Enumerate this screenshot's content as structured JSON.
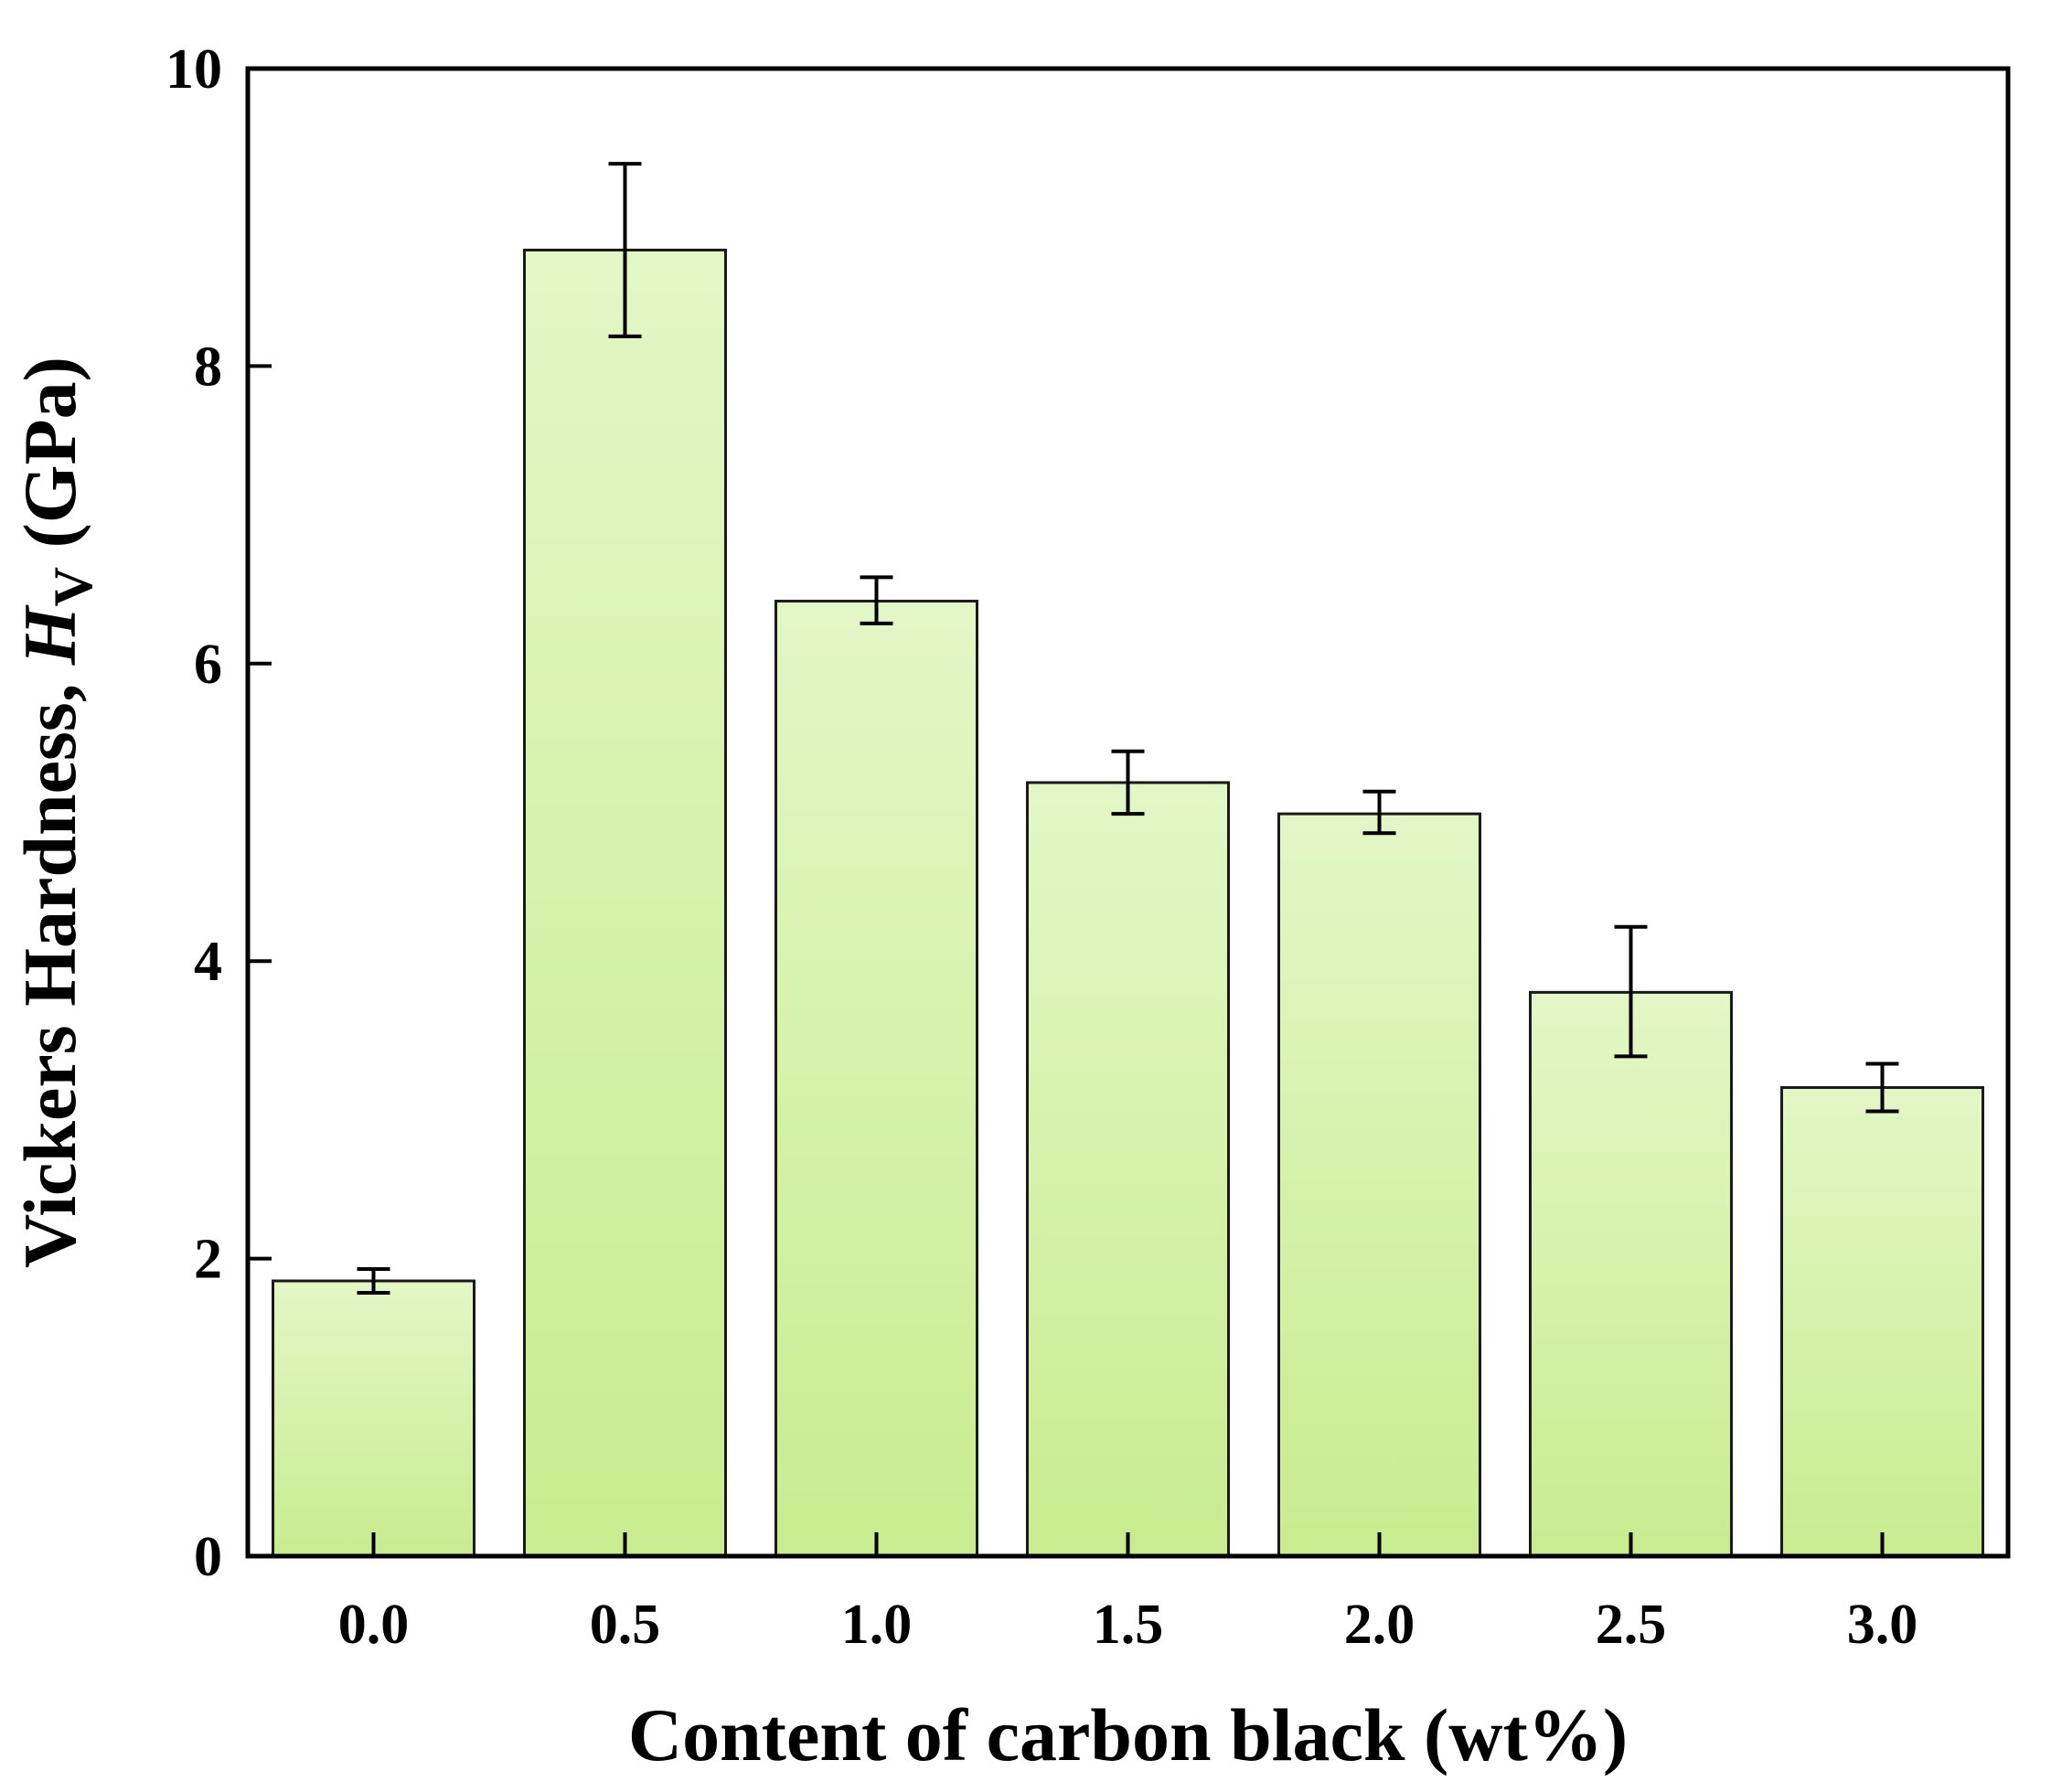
{
  "chart_data": {
    "type": "bar",
    "xlabel": "Content of carbon black (wt%)",
    "ylabel": {
      "prefix": "Vickers Hardness, ",
      "symbol": "H",
      "subscript": "V",
      "suffix": " (GPa)"
    },
    "categories": [
      "0.0",
      "0.5",
      "1.0",
      "1.5",
      "2.0",
      "2.5",
      "3.0"
    ],
    "values": [
      1.85,
      8.78,
      6.42,
      5.2,
      4.99,
      3.79,
      3.15
    ],
    "error_low": [
      1.77,
      8.2,
      6.27,
      4.99,
      4.86,
      3.36,
      2.99
    ],
    "error_high": [
      1.93,
      9.36,
      6.58,
      5.41,
      5.14,
      4.23,
      3.31
    ],
    "ylim": [
      0,
      10
    ],
    "yticks": [
      "0",
      "2",
      "4",
      "6",
      "8",
      "10"
    ],
    "ytick_values": [
      0,
      2,
      4,
      6,
      8,
      10
    ],
    "grid": false,
    "legend": "none",
    "colors": {
      "bar_top": "#e2f7c6",
      "bar_bottom": "#c9ec8f",
      "bar_edge": "#1a1a1a",
      "axis": "#000000"
    }
  }
}
